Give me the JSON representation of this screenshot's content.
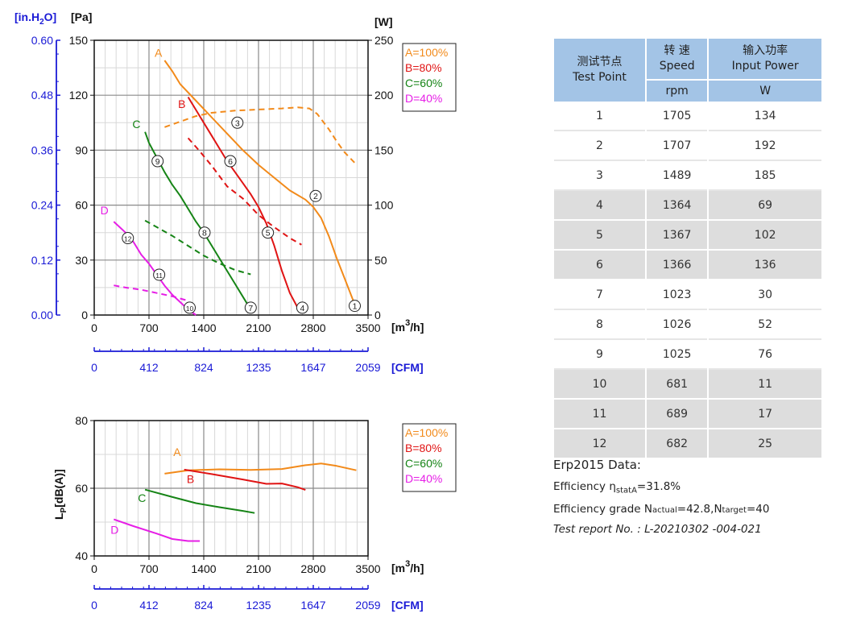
{
  "chart_data": [
    {
      "type": "line",
      "units": {
        "y_left_inh2o": "[in.H2O]",
        "y_left_pa": "[Pa]",
        "y_right": "[W]",
        "x": "[m3/h]",
        "x_cfm": "[CFM]"
      },
      "pa_axis": {
        "ticks": [
          0,
          30,
          60,
          90,
          120,
          150
        ],
        "range": [
          0,
          150
        ]
      },
      "inh2o_axis": {
        "ticks": [
          "0.00",
          "0.12",
          "0.24",
          "0.36",
          "0.48",
          "0.60"
        ]
      },
      "w_axis": {
        "ticks": [
          0,
          50,
          100,
          150,
          200,
          250
        ],
        "range": [
          0,
          250
        ]
      },
      "x_axis": {
        "ticks": [
          0,
          700,
          1400,
          2100,
          2800,
          3500
        ],
        "range": [
          0,
          3500
        ]
      },
      "cfm_axis": {
        "ticks": [
          "0",
          "412",
          "824",
          "1235",
          "1647",
          "2059"
        ]
      },
      "legend": {
        "placement": "top-right",
        "entries": [
          "A=100%",
          "B=80%",
          "C=60%",
          "D=40%"
        ]
      },
      "grid": true,
      "series": [
        {
          "key": "A",
          "label": "A",
          "color": "#f28a1a",
          "pressure": [
            [
              900,
              139
            ],
            [
              1000,
              133
            ],
            [
              1100,
              126
            ],
            [
              1300,
              117
            ],
            [
              1500,
              108
            ],
            [
              1700,
              99
            ],
            [
              1900,
              90
            ],
            [
              2100,
              82
            ],
            [
              2300,
              75
            ],
            [
              2500,
              68
            ],
            [
              2700,
              63
            ],
            [
              2800,
              59
            ],
            [
              2900,
              53
            ],
            [
              3000,
              43
            ],
            [
              3100,
              31
            ],
            [
              3200,
              20
            ],
            [
              3300,
              9
            ],
            [
              3350,
              4
            ]
          ],
          "power": [
            [
              900,
              171
            ],
            [
              1100,
              176
            ],
            [
              1300,
              181
            ],
            [
              1500,
              184
            ],
            [
              1800,
              186
            ],
            [
              2100,
              187
            ],
            [
              2400,
              188
            ],
            [
              2600,
              189
            ],
            [
              2750,
              188
            ],
            [
              2850,
              183
            ],
            [
              3000,
              169
            ],
            [
              3100,
              158
            ],
            [
              3200,
              148
            ],
            [
              3350,
              137
            ]
          ]
        },
        {
          "key": "B",
          "label": "B",
          "color": "#e01414",
          "pressure": [
            [
              1200,
              119
            ],
            [
              1300,
              112
            ],
            [
              1400,
              105
            ],
            [
              1500,
              98
            ],
            [
              1600,
              91
            ],
            [
              1700,
              84
            ],
            [
              1800,
              78
            ],
            [
              1900,
              72
            ],
            [
              2000,
              66
            ],
            [
              2100,
              59
            ],
            [
              2200,
              50
            ],
            [
              2300,
              38
            ],
            [
              2400,
              24
            ],
            [
              2500,
              12
            ],
            [
              2600,
              4
            ]
          ],
          "power": [
            [
              1200,
              161
            ],
            [
              1350,
              149
            ],
            [
              1500,
              136
            ],
            [
              1700,
              117
            ],
            [
              1900,
              106
            ],
            [
              2100,
              91
            ],
            [
              2300,
              80
            ],
            [
              2500,
              70
            ],
            [
              2650,
              64
            ]
          ]
        },
        {
          "key": "C",
          "label": "C",
          "color": "#168416",
          "pressure": [
            [
              650,
              100
            ],
            [
              700,
              94
            ],
            [
              800,
              86
            ],
            [
              900,
              78
            ],
            [
              1000,
              71
            ],
            [
              1100,
              65
            ],
            [
              1200,
              58
            ],
            [
              1300,
              51
            ],
            [
              1400,
              45
            ],
            [
              1500,
              38
            ],
            [
              1600,
              31
            ],
            [
              1700,
              24
            ],
            [
              1800,
              17
            ],
            [
              1900,
              10
            ],
            [
              2000,
              3
            ]
          ],
          "power": [
            [
              650,
              86
            ],
            [
              800,
              80
            ],
            [
              1000,
              72
            ],
            [
              1200,
              63
            ],
            [
              1400,
              54
            ],
            [
              1600,
              47
            ],
            [
              1800,
              41
            ],
            [
              2000,
              37
            ]
          ]
        },
        {
          "key": "D",
          "label": "D",
          "color": "#e61ee6",
          "pressure": [
            [
              250,
              51
            ],
            [
              400,
              45
            ],
            [
              500,
              40
            ],
            [
              600,
              33
            ],
            [
              700,
              28
            ],
            [
              800,
              22
            ],
            [
              900,
              16
            ],
            [
              1000,
              11
            ],
            [
              1100,
              7
            ],
            [
              1200,
              3
            ],
            [
              1300,
              0
            ]
          ],
          "power": [
            [
              250,
              27
            ],
            [
              400,
              25
            ],
            [
              600,
              23
            ],
            [
              800,
              20
            ],
            [
              1000,
              17
            ],
            [
              1200,
              13
            ]
          ]
        }
      ],
      "test_points": [
        {
          "n": "1",
          "x": 3330,
          "y": 5
        },
        {
          "n": "2",
          "x": 2830,
          "y": 65
        },
        {
          "n": "3",
          "x": 1830,
          "y": 105
        },
        {
          "n": "4",
          "x": 2660,
          "y": 4
        },
        {
          "n": "5",
          "x": 2220,
          "y": 45
        },
        {
          "n": "6",
          "x": 1740,
          "y": 84
        },
        {
          "n": "7",
          "x": 2000,
          "y": 4
        },
        {
          "n": "8",
          "x": 1410,
          "y": 45
        },
        {
          "n": "9",
          "x": 810,
          "y": 84
        },
        {
          "n": "10",
          "x": 1220,
          "y": 4
        },
        {
          "n": "11",
          "x": 830,
          "y": 22
        },
        {
          "n": "12",
          "x": 430,
          "y": 42
        }
      ],
      "curve_labels": [
        {
          "key": "A",
          "text": "A",
          "x": 820,
          "y": 141
        },
        {
          "key": "B",
          "text": "B",
          "x": 1120,
          "y": 113
        },
        {
          "key": "C",
          "text": "C",
          "x": 540,
          "y": 102
        },
        {
          "key": "D",
          "text": "D",
          "x": 130,
          "y": 55
        }
      ]
    },
    {
      "type": "line",
      "ylabel": "LP[dB(A)]",
      "y_axis": {
        "ticks": [
          40,
          60,
          80
        ],
        "range": [
          40,
          80
        ]
      },
      "x_axis": {
        "ticks": [
          0,
          700,
          1400,
          2100,
          2800,
          3500
        ],
        "range": [
          0,
          3500
        ]
      },
      "cfm_axis": {
        "ticks": [
          "0",
          "412",
          "824",
          "1235",
          "1647",
          "2059"
        ]
      },
      "units": {
        "x": "[m3/h]",
        "x_cfm": "[CFM]"
      },
      "legend": {
        "placement": "top-right",
        "entries": [
          "A=100%",
          "B=80%",
          "C=60%",
          "D=40%"
        ]
      },
      "grid": true,
      "series": [
        {
          "key": "A",
          "label": "A",
          "color": "#f28a1a",
          "values": [
            [
              900,
              64.3
            ],
            [
              1200,
              65.3
            ],
            [
              1600,
              65.6
            ],
            [
              2000,
              65.4
            ],
            [
              2400,
              65.7
            ],
            [
              2700,
              66.8
            ],
            [
              2900,
              67.3
            ],
            [
              3100,
              66.6
            ],
            [
              3350,
              65.3
            ]
          ]
        },
        {
          "key": "B",
          "label": "B",
          "color": "#e01414",
          "values": [
            [
              1150,
              65.5
            ],
            [
              1500,
              64.2
            ],
            [
              1900,
              62.6
            ],
            [
              2200,
              61.3
            ],
            [
              2400,
              61.4
            ],
            [
              2600,
              60.3
            ],
            [
              2700,
              59.5
            ]
          ]
        },
        {
          "key": "C",
          "label": "C",
          "color": "#168416",
          "values": [
            [
              650,
              59.6
            ],
            [
              1000,
              57.4
            ],
            [
              1300,
              55.6
            ],
            [
              1600,
              54.4
            ],
            [
              1900,
              53.3
            ],
            [
              2050,
              52.7
            ]
          ]
        },
        {
          "key": "D",
          "label": "D",
          "color": "#e61ee6",
          "values": [
            [
              250,
              50.8
            ],
            [
              500,
              48.8
            ],
            [
              800,
              46.6
            ],
            [
              1000,
              45.0
            ],
            [
              1200,
              44.4
            ],
            [
              1350,
              44.4
            ]
          ]
        }
      ],
      "curve_labels": [
        {
          "key": "A",
          "text": "A",
          "x": 1060,
          "y": 69.5
        },
        {
          "key": "B",
          "text": "B",
          "x": 1230,
          "y": 61.6
        },
        {
          "key": "C",
          "text": "C",
          "x": 610,
          "y": 56
        },
        {
          "key": "D",
          "text": "D",
          "x": 260,
          "y": 46.5
        }
      ]
    }
  ],
  "table": {
    "headers": {
      "col1": {
        "cn": "测试节点",
        "en": "Test Point"
      },
      "col2": {
        "cn": "转 速",
        "en": "Speed",
        "unit": "rpm"
      },
      "col3": {
        "cn": "输入功率",
        "en": "Input Power",
        "unit": "W"
      }
    },
    "rows": [
      {
        "point": "1",
        "speed": "1705",
        "power": "134",
        "shade": false
      },
      {
        "point": "2",
        "speed": "1707",
        "power": "192",
        "shade": false
      },
      {
        "point": "3",
        "speed": "1489",
        "power": "185",
        "shade": false
      },
      {
        "point": "4",
        "speed": "1364",
        "power": "69",
        "shade": true
      },
      {
        "point": "5",
        "speed": "1367",
        "power": "102",
        "shade": true
      },
      {
        "point": "6",
        "speed": "1366",
        "power": "136",
        "shade": true
      },
      {
        "point": "7",
        "speed": "1023",
        "power": "30",
        "shade": false
      },
      {
        "point": "8",
        "speed": "1026",
        "power": "52",
        "shade": false
      },
      {
        "point": "9",
        "speed": "1025",
        "power": "76",
        "shade": false
      },
      {
        "point": "10",
        "speed": "681",
        "power": "11",
        "shade": true
      },
      {
        "point": "11",
        "speed": "689",
        "power": "17",
        "shade": true
      },
      {
        "point": "12",
        "speed": "682",
        "power": "25",
        "shade": true
      }
    ]
  },
  "erp": {
    "title": "Erp2015  Data:",
    "efficiency_label": "Efficiency η",
    "efficiency_sub": "statA",
    "efficiency_value": "=31.8%",
    "grade_label": "Efficiency grade  N",
    "grade_sub1": "actual",
    "grade_val1": "=42.8,N",
    "grade_sub2": "target",
    "grade_val2": "=40",
    "report": "Test report No. : L-20210302 -004-021"
  }
}
